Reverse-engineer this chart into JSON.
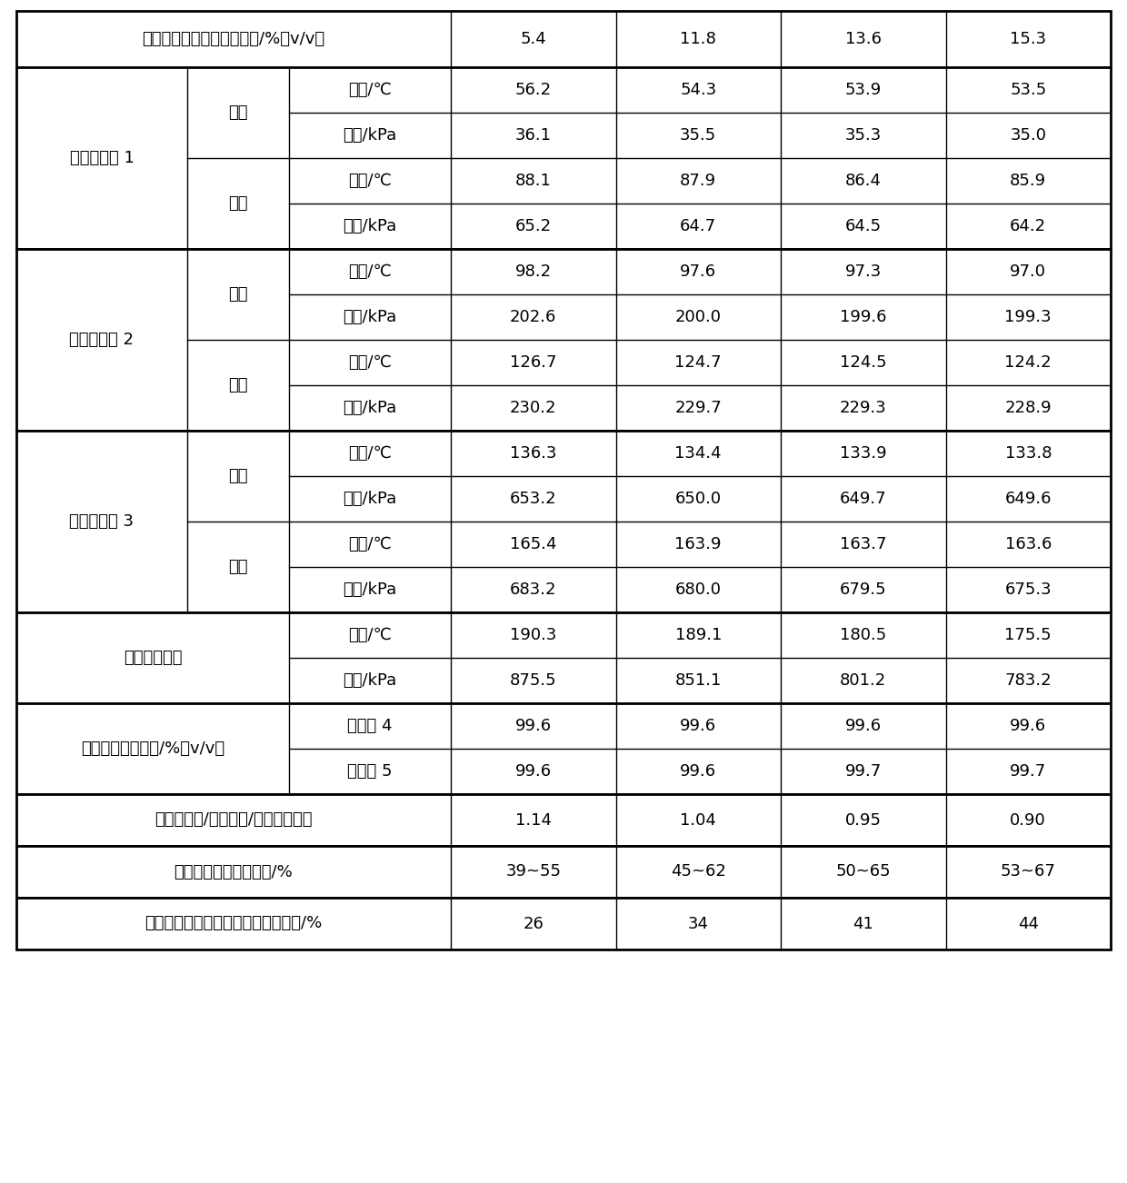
{
  "header_row": {
    "col0": "进料发酵醪液乙醇体积浓度/%（v/v）",
    "values": [
      "5.4",
      "11.8",
      "13.6",
      "15.3"
    ]
  },
  "sections": [
    {
      "name": "减压精馏塔 1",
      "subsections": [
        {
          "name": "塔顶",
          "rows": [
            {
              "温度/℃": [
                "56.2",
                "54.3",
                "53.9",
                "53.5"
              ]
            },
            {
              "绝压/kPa": [
                "36.1",
                "35.5",
                "35.3",
                "35.0"
              ]
            }
          ]
        },
        {
          "name": "塔底",
          "rows": [
            {
              "温度/℃": [
                "88.1",
                "87.9",
                "86.4",
                "85.9"
              ]
            },
            {
              "绝压/kPa": [
                "65.2",
                "64.7",
                "64.5",
                "64.2"
              ]
            }
          ]
        }
      ]
    },
    {
      "name": "加压精馏塔 2",
      "subsections": [
        {
          "name": "塔顶",
          "rows": [
            {
              "温度/℃": [
                "98.2",
                "97.6",
                "97.3",
                "97.0"
              ]
            },
            {
              "压力/kPa": [
                "202.6",
                "200.0",
                "199.6",
                "199.3"
              ]
            }
          ]
        },
        {
          "name": "塔底",
          "rows": [
            {
              "温度/℃": [
                "126.7",
                "124.7",
                "124.5",
                "124.2"
              ]
            },
            {
              "压力/kPa": [
                "230.2",
                "229.7",
                "229.3",
                "228.9"
              ]
            }
          ]
        }
      ]
    },
    {
      "name": "加压精馏塔 3",
      "subsections": [
        {
          "name": "塔顶",
          "rows": [
            {
              "温度/℃": [
                "136.3",
                "134.4",
                "133.9",
                "133.8"
              ]
            },
            {
              "压力/kPa": [
                "653.2",
                "650.0",
                "649.7",
                "649.6"
              ]
            }
          ]
        },
        {
          "name": "塔底",
          "rows": [
            {
              "温度/℃": [
                "165.4",
                "163.9",
                "163.7",
                "163.6"
              ]
            },
            {
              "压力/kPa": [
                "683.2",
                "680.0",
                "679.5",
                "675.3"
              ]
            }
          ]
        }
      ]
    }
  ],
  "external_steam": {
    "name": "外界加热蒸汽",
    "rows": [
      {
        "温度/℃": [
          "190.3",
          "189.1",
          "180.5",
          "175.5"
        ]
      },
      {
        "压力/kPa": [
          "875.5",
          "851.1",
          "801.2",
          "783.2"
        ]
      }
    ]
  },
  "fuel_ethanol": {
    "name": "燃料乙醇体积浓度/%（v/v）",
    "rows": [
      {
        "膜组件 4": [
          "99.6",
          "99.6",
          "99.6",
          "99.6"
        ]
      },
      {
        "膜组件 5": [
          "99.6",
          "99.6",
          "99.7",
          "99.7"
        ]
      }
    ]
  },
  "footer_rows": [
    {
      "label": "总耗蒸汽量/（吨蒸汽/吨燃料乙醇）",
      "values": [
        "1.14",
        "1.04",
        "0.95",
        "0.90"
      ]
    },
    {
      "label": "相对传统工艺节约蒸汽/%",
      "values": [
        "39~55",
        "45~62",
        "50~65",
        "53~67"
      ]
    },
    {
      "label": "相对组合塔分子筛集成工艺节约蒸汽/%",
      "values": [
        "26",
        "34",
        "41",
        "44"
      ]
    }
  ],
  "bg_color": "#ffffff",
  "font_size": 13
}
